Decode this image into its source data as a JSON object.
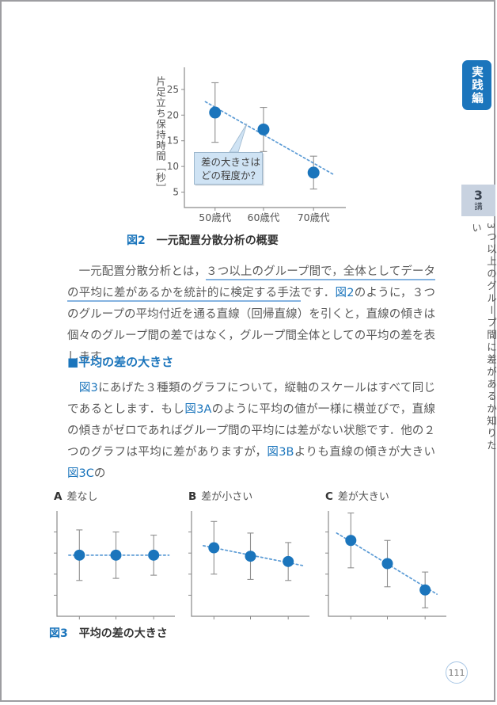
{
  "page": {
    "number": "111"
  },
  "sidebar": {
    "edition_tab": "実践編",
    "lecture_badge": {
      "number": "3",
      "suffix": "講"
    },
    "lecture_title": "3つ以上のグループ間に差があるか知りたい"
  },
  "figure2": {
    "caption_label": "図2",
    "caption_text": "一元配置分散分析の概要",
    "callout_lines": [
      "差の大きさは",
      "どの程度か？"
    ]
  },
  "section": {
    "heading": "■平均の差の大きさ"
  },
  "figure3": {
    "caption_label": "図3",
    "caption_text": "平均の差の大きさ"
  },
  "paragraphs": [
    {
      "segments": [
        {
          "style": "normal",
          "text": "　一元配置分散分析とは，"
        },
        {
          "style": "underline",
          "text": "３つ以上のグループ間で，全体としてデータの平均に差があるかを統計的に検定する手法"
        },
        {
          "style": "normal",
          "text": "です．"
        },
        {
          "style": "ref",
          "text": "図2"
        },
        {
          "style": "normal",
          "text": "のように，３つのグループの平均付近を通る直線（回帰直線）を引くと，直線の傾きは個々のグループ間の差ではなく，グループ間全体としての平均の差を表します．"
        }
      ]
    },
    {
      "segments": [
        {
          "style": "normal",
          "text": "　"
        },
        {
          "style": "ref",
          "text": "図3"
        },
        {
          "style": "normal",
          "text": "にあげた３種類のグラフについて，縦軸のスケールはすべて同じであるとします．もし"
        },
        {
          "style": "ref",
          "text": "図3A"
        },
        {
          "style": "normal",
          "text": "のように平均の値が一様に横並びで，直線の傾きがゼロであればグループ間の平均には差がない状態です．他の２つのグラフは平均に差がありますが，"
        },
        {
          "style": "ref",
          "text": "図3B"
        },
        {
          "style": "normal",
          "text": "よりも直線の傾きが大きい"
        },
        {
          "style": "ref",
          "text": "図3C"
        },
        {
          "style": "normal",
          "text": "の"
        }
      ]
    }
  ],
  "chart_data": [
    {
      "id": "fig2",
      "type": "scatter",
      "title": "図2 一元配置分散分析の概要",
      "categories": [
        "50歳代",
        "60歳代",
        "70歳代"
      ],
      "values": [
        20.5,
        17.2,
        8.8
      ],
      "errors": [
        5.8,
        4.3,
        3.2
      ],
      "xlabel": "",
      "ylabel": "片足立ち保持時間［秒］",
      "yticks": [
        5,
        10,
        15,
        20,
        25
      ],
      "ylim": [
        2,
        29.3
      ],
      "trend": {
        "y_start": 22.6,
        "y_end": 8.5
      },
      "annotation": "差の大きさはどの程度か？",
      "grid": false,
      "legend": false
    },
    {
      "id": "fig3a",
      "type": "scatter",
      "label": "A",
      "title": "差なし",
      "values": [
        5.8,
        5.8,
        5.8
      ],
      "errors": [
        2.4,
        2.2,
        1.9
      ],
      "ylim": [
        0,
        10
      ],
      "yticks": [
        2,
        4,
        6,
        8
      ],
      "ytick_labels_shown": false,
      "trend": {
        "y_start": 5.8,
        "y_end": 5.8
      },
      "grid": false
    },
    {
      "id": "fig3b",
      "type": "scatter",
      "label": "B",
      "title": "差が小さい",
      "values": [
        6.5,
        5.7,
        5.2
      ],
      "errors": [
        2.5,
        2.2,
        1.8
      ],
      "ylim": [
        0,
        10
      ],
      "yticks": [
        2,
        4,
        6,
        8
      ],
      "ytick_labels_shown": false,
      "trend": {
        "y_start": 6.7,
        "y_end": 4.8
      },
      "grid": false
    },
    {
      "id": "fig3c",
      "type": "scatter",
      "label": "C",
      "title": "差が大きい",
      "values": [
        7.2,
        5.0,
        2.5
      ],
      "errors": [
        2.6,
        2.2,
        1.7
      ],
      "ylim": [
        0,
        10
      ],
      "yticks": [
        2,
        4,
        6,
        8
      ],
      "ytick_labels_shown": false,
      "trend": {
        "y_start": 7.9,
        "y_end": 2.1
      },
      "grid": false
    }
  ],
  "colors": {
    "accent": "#1b75bc",
    "point": "#1b75bc",
    "trend_line": "#5b9bd5",
    "error_bar": "#8f8f8f",
    "axis": "#8a8a8a",
    "tick_text": "#555555",
    "callout_bg": "#cfe3f4",
    "callout_border": "#9db7cd",
    "tab_bg": "#1b75bc",
    "badge_bg": "#c8d2e0",
    "body_text": "#5a5a5a",
    "underline": "#85b3e0",
    "page_circle_border": "#a9c7e5"
  }
}
